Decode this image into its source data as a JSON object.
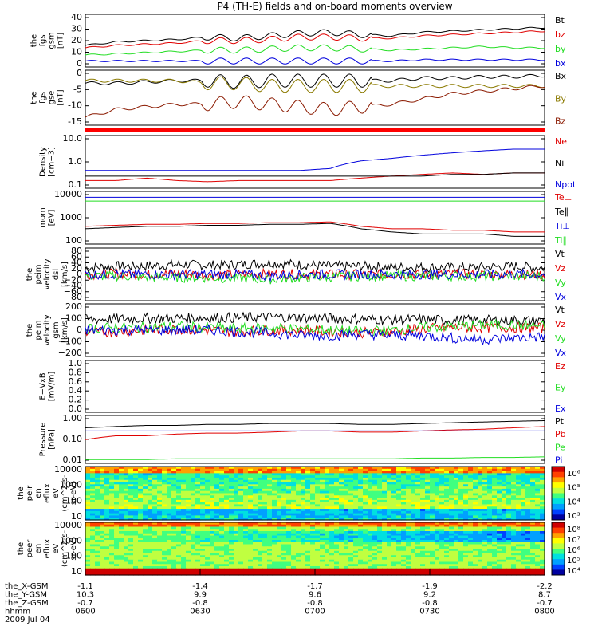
{
  "title": "P4 (TH-E) fields and on-board moments overview",
  "colors": {
    "black": "#000000",
    "red": "#e00000",
    "green": "#22dd22",
    "blue": "#0000dd",
    "darkred": "#8b1a00",
    "olive": "#8b7a00",
    "sep": "#ff0000"
  },
  "chart_data": [
    {
      "type": "line",
      "ylabel": [
        "the",
        "fgs",
        "gsm",
        "[nT]"
      ],
      "yticks": [
        "40",
        "30",
        "20",
        "10",
        "0"
      ],
      "ylim": [
        -2,
        42
      ],
      "series": [
        {
          "name": "Bt",
          "color": "black",
          "values": [
            16,
            19,
            20,
            21,
            23,
            22,
            24,
            26,
            27,
            25,
            24,
            27,
            28,
            29,
            30,
            31
          ]
        },
        {
          "name": "bz",
          "color": "red",
          "values": [
            14,
            16,
            17,
            18,
            20,
            20,
            21,
            23,
            23,
            22,
            22,
            24,
            25,
            26,
            27,
            28
          ]
        },
        {
          "name": "by",
          "color": "green",
          "values": [
            8,
            9,
            10,
            11,
            12,
            12,
            13,
            14,
            14,
            13,
            12,
            13,
            14,
            15,
            14,
            14
          ]
        },
        {
          "name": "bx",
          "color": "blue",
          "values": [
            3,
            3,
            3,
            3,
            3,
            3,
            3,
            3,
            3,
            3,
            3,
            4,
            4,
            4,
            4,
            4
          ]
        }
      ]
    },
    {
      "type": "line",
      "ylabel": [
        "the",
        "fgs",
        "gse",
        "[nT]"
      ],
      "yticks": [
        "0",
        "-5",
        "-10",
        "-15"
      ],
      "ylim": [
        -18,
        3
      ],
      "series": [
        {
          "name": "Bx",
          "color": "black",
          "values": [
            -2,
            -2,
            -1.5,
            -1,
            -1,
            -1.5,
            -1,
            -1,
            -1,
            -1,
            -1,
            0,
            0,
            0.5,
            0.5,
            1
          ]
        },
        {
          "name": "By",
          "color": "olive",
          "values": [
            -1,
            -1,
            -1,
            -1,
            -2,
            -2,
            -3,
            -3,
            -3,
            -3,
            -3,
            -3,
            -3,
            -3,
            -3,
            -3
          ]
        },
        {
          "name": "Bz",
          "color": "darkred",
          "values": [
            -15,
            -12,
            -11,
            -10,
            -10,
            -9,
            -10,
            -11,
            -12,
            -11,
            -10,
            -8,
            -6,
            -5,
            -4,
            -3
          ]
        }
      ]
    },
    {
      "type": "line",
      "ylabel": [
        "Density",
        "[cm−3]"
      ],
      "yticks": [
        "10.0",
        "1.0",
        "0.1"
      ],
      "scale": "log",
      "ylim": [
        0.1,
        12
      ],
      "series": [
        {
          "name": "Ne",
          "color": "red",
          "values": [
            0.2,
            0.2,
            0.25,
            0.2,
            0.18,
            0.2,
            0.2,
            0.2,
            0.2,
            0.25,
            0.3,
            0.35,
            0.4,
            0.35,
            0.4,
            0.4
          ]
        },
        {
          "name": "Ni",
          "color": "black",
          "values": [
            0.3,
            0.3,
            0.3,
            0.3,
            0.3,
            0.3,
            0.3,
            0.3,
            0.3,
            0.3,
            0.3,
            0.3,
            0.35,
            0.35,
            0.4,
            0.4
          ]
        },
        {
          "name": "Npot",
          "color": "blue",
          "values": [
            0.5,
            0.5,
            0.5,
            0.5,
            0.5,
            0.5,
            0.5,
            0.5,
            0.6,
            1.2,
            1.5,
            2.0,
            2.5,
            3.0,
            3.5,
            3.5
          ]
        }
      ]
    },
    {
      "type": "line",
      "ylabel": [
        "mom",
        "[eV]"
      ],
      "yticks": [
        "10000",
        "1000",
        "100"
      ],
      "scale": "log",
      "ylim": [
        100,
        12000
      ],
      "series": [
        {
          "name": "Te⊥",
          "color": "red",
          "values": [
            500,
            550,
            600,
            600,
            650,
            650,
            700,
            700,
            750,
            500,
            400,
            400,
            350,
            350,
            300,
            300
          ]
        },
        {
          "name": "Te∥",
          "color": "black",
          "values": [
            400,
            450,
            500,
            500,
            550,
            550,
            600,
            600,
            650,
            400,
            300,
            250,
            250,
            250,
            200,
            200
          ]
        },
        {
          "name": "Ti⊥",
          "color": "blue",
          "values": [
            7000,
            7000,
            7000,
            7000,
            7000,
            7000,
            7000,
            7000,
            7000,
            7000,
            7000,
            7000,
            7000,
            7000,
            7000,
            7000
          ]
        },
        {
          "name": "Ti∥",
          "color": "green",
          "values": [
            5000,
            5000,
            5000,
            5000,
            5000,
            5000,
            5000,
            5000,
            5000,
            5000,
            5000,
            5000,
            5000,
            5000,
            5000,
            5000
          ]
        }
      ]
    },
    {
      "type": "line",
      "ylabel": [
        "the",
        "peim",
        "velocity",
        "dsl",
        "[km/s]"
      ],
      "yticks": [
        "80",
        "60",
        "40",
        "20",
        "0",
        "−20",
        "−40",
        "−60",
        "−80"
      ],
      "ylim": [
        -80,
        80
      ],
      "series": [
        {
          "name": "Vt",
          "color": "black",
          "values": [
            20,
            25,
            25,
            30,
            28,
            30,
            35,
            30,
            25,
            25,
            22,
            22,
            20,
            22,
            25,
            20
          ]
        },
        {
          "name": "Vz",
          "color": "red",
          "values": [
            0,
            2,
            0,
            3,
            -2,
            0,
            2,
            0,
            0,
            0,
            0,
            0,
            0,
            0,
            0,
            0
          ]
        },
        {
          "name": "Vy",
          "color": "green",
          "values": [
            -5,
            -5,
            -8,
            -10,
            -10,
            -12,
            -15,
            -10,
            -8,
            -5,
            -5,
            -5,
            -5,
            -5,
            -5,
            -5
          ]
        },
        {
          "name": "Vx",
          "color": "blue",
          "values": [
            0,
            0,
            0,
            0,
            0,
            0,
            -5,
            0,
            0,
            0,
            0,
            0,
            0,
            0,
            0,
            0
          ]
        }
      ]
    },
    {
      "type": "line",
      "ylabel": [
        "the",
        "peim",
        "velocity",
        "gsm",
        "[km/s]"
      ],
      "yticks": [
        "200",
        "100",
        "0",
        "−100",
        "−200"
      ],
      "ylim": [
        -200,
        200
      ],
      "series": [
        {
          "name": "Vt",
          "color": "black",
          "values": [
            80,
            85,
            90,
            90,
            95,
            95,
            100,
            95,
            90,
            85,
            80,
            80,
            75,
            75,
            75,
            70
          ]
        },
        {
          "name": "Vz",
          "color": "red",
          "values": [
            -20,
            -10,
            0,
            10,
            0,
            -10,
            0,
            0,
            -10,
            -20,
            -10,
            10,
            20,
            20,
            20,
            15
          ]
        },
        {
          "name": "Vy",
          "color": "green",
          "values": [
            10,
            20,
            20,
            30,
            20,
            10,
            20,
            10,
            0,
            -10,
            0,
            20,
            30,
            40,
            40,
            30
          ]
        },
        {
          "name": "Vx",
          "color": "blue",
          "values": [
            0,
            0,
            0,
            0,
            0,
            -10,
            -20,
            -40,
            -40,
            -30,
            -40,
            -40,
            -60,
            -70,
            -60,
            -50
          ]
        }
      ]
    },
    {
      "type": "line",
      "ylabel": [
        "E−VxB",
        "[mV/m]"
      ],
      "yticks": [
        "1.0",
        "0.8",
        "0.6",
        "0.4",
        "0.2",
        "0.0"
      ],
      "ylim": [
        0,
        1
      ],
      "series": [
        {
          "name": "Ez",
          "color": "red",
          "values": []
        },
        {
          "name": "Ey",
          "color": "green",
          "values": []
        },
        {
          "name": "Ex",
          "color": "blue",
          "values": []
        }
      ]
    },
    {
      "type": "line",
      "ylabel": [
        "Pressure",
        "[nPa]"
      ],
      "yticks": [
        "1.00",
        "0.10",
        "0.01"
      ],
      "scale": "log",
      "ylim": [
        0.008,
        1.3
      ],
      "series": [
        {
          "name": "Pt",
          "color": "black",
          "values": [
            0.35,
            0.4,
            0.45,
            0.45,
            0.5,
            0.5,
            0.55,
            0.55,
            0.55,
            0.5,
            0.5,
            0.55,
            0.6,
            0.65,
            0.7,
            0.75
          ]
        },
        {
          "name": "Pb",
          "color": "red",
          "values": [
            0.1,
            0.15,
            0.15,
            0.18,
            0.2,
            0.2,
            0.22,
            0.25,
            0.25,
            0.22,
            0.22,
            0.25,
            0.28,
            0.3,
            0.35,
            0.4
          ]
        },
        {
          "name": "Pe",
          "color": "green",
          "values": [
            0.012,
            0.012,
            0.012,
            0.013,
            0.013,
            0.013,
            0.013,
            0.013,
            0.013,
            0.013,
            0.013,
            0.014,
            0.014,
            0.015,
            0.015,
            0.016
          ]
        },
        {
          "name": "Pi",
          "color": "blue",
          "values": [
            0.25,
            0.25,
            0.25,
            0.25,
            0.25,
            0.25,
            0.25,
            0.25,
            0.25,
            0.25,
            0.25,
            0.25,
            0.25,
            0.25,
            0.25,
            0.25
          ]
        }
      ]
    },
    {
      "type": "heatmap",
      "ylabel": [
        "the",
        "peir",
        "en",
        "eflux",
        "eV",
        "(cm^2-s-",
        "sr-eV)"
      ],
      "yticks": [
        "10000",
        "1000",
        "100",
        "10"
      ],
      "colorbar": [
        "10⁶",
        "10⁵",
        "10⁴",
        "10³"
      ]
    },
    {
      "type": "heatmap",
      "ylabel": [
        "the",
        "peer",
        "en",
        "eflux",
        "eV",
        "(cm^2-s-",
        "sr-eV)"
      ],
      "yticks": [
        "10000",
        "1000",
        "100",
        "10"
      ],
      "colorbar": [
        "10⁸",
        "10⁷",
        "10⁶",
        "10⁵",
        "10⁴"
      ]
    }
  ],
  "footer": {
    "rows": [
      {
        "label": "the_X-GSM",
        "values": [
          "-1.1",
          "-1.4",
          "-1.7",
          "-1.9",
          "-2.2"
        ]
      },
      {
        "label": "the_Y-GSM",
        "values": [
          "10.3",
          "9.9",
          "9.6",
          "9.2",
          "8.7"
        ]
      },
      {
        "label": "the_Z-GSM",
        "values": [
          "-0.7",
          "-0.8",
          "-0.8",
          "-0.8",
          "-0.7"
        ]
      },
      {
        "label": "hhmm",
        "values": [
          "0600",
          "0630",
          "0700",
          "0730",
          "0800"
        ]
      }
    ],
    "date": "2009 Jul 04"
  }
}
